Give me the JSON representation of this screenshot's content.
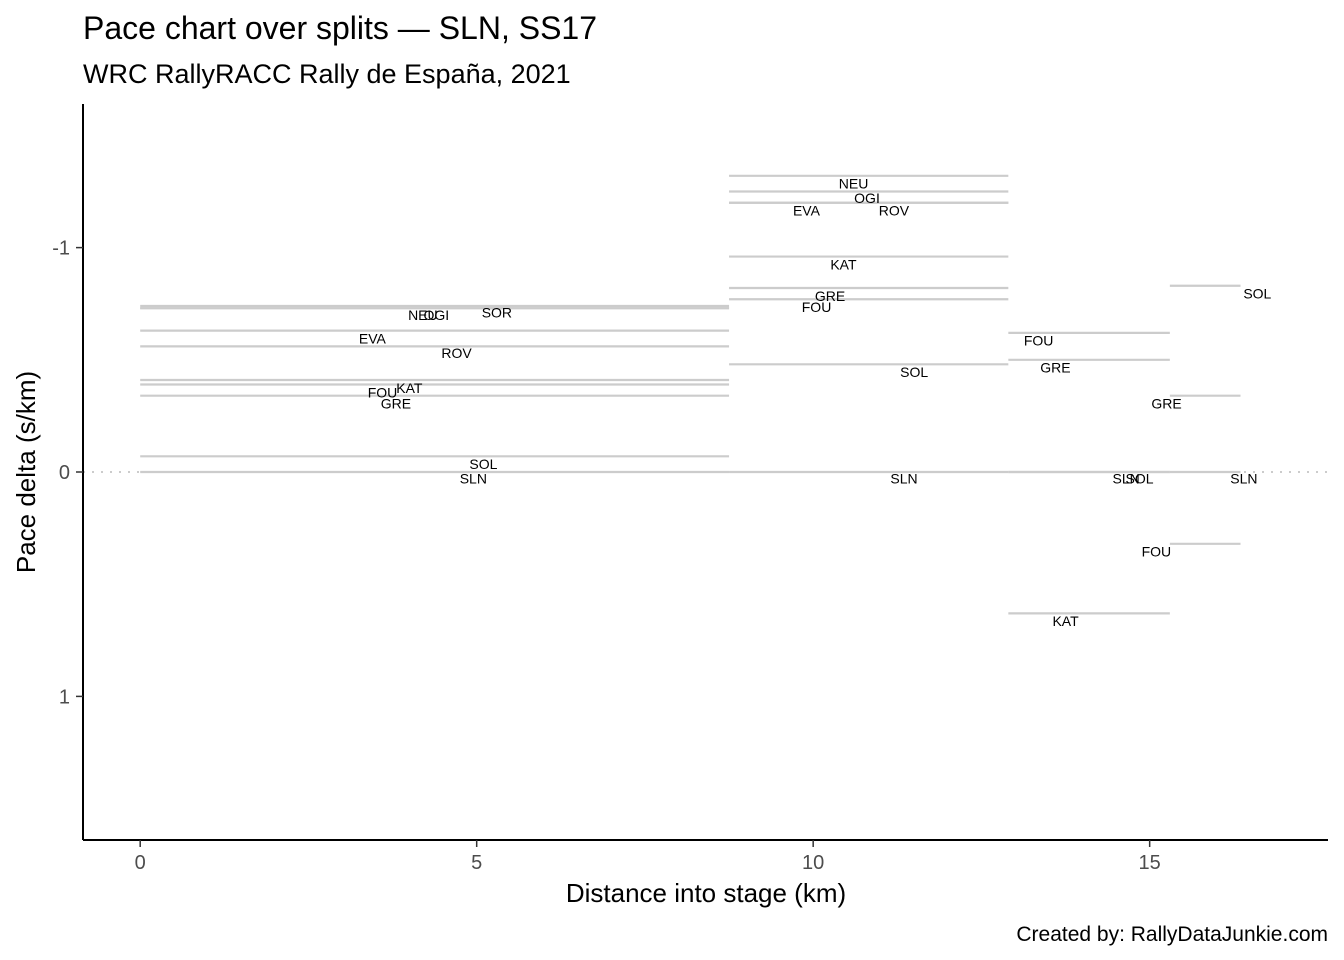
{
  "chart_data": {
    "type": "line",
    "title": "Pace chart over splits — SLN, SS17",
    "subtitle": "WRC RallyRACC Rally de España, 2021",
    "xlabel": "Distance into stage (km)",
    "ylabel": "Pace delta (s/km)",
    "caption": "Created by: RallyDataJunkie.com",
    "xlim": [
      -0.85,
      17.65
    ],
    "ylim": [
      -1.64,
      1.64
    ],
    "y_reversed": true,
    "x_ticks": [
      0,
      5,
      10,
      15
    ],
    "x_tick_labels": [
      "0",
      "5",
      "10",
      "15"
    ],
    "y_ticks": [
      -1,
      0,
      1
    ],
    "y_tick_labels": [
      "-1",
      "0",
      "1"
    ],
    "reference_line": {
      "y": 0,
      "style": "dotted"
    },
    "grid": false,
    "legend": "none",
    "colors": {
      "segments": "#cccccc",
      "reference": "#cccccc",
      "axis": "#000000"
    },
    "segments": [
      {
        "label": "NEU",
        "x_start": 0,
        "x_end": 8.75,
        "y": -0.73,
        "label_x": 4.2,
        "label_y": -0.7
      },
      {
        "label": "OGI",
        "x_start": 0,
        "x_end": 8.75,
        "y": -0.73,
        "label_x": 4.4,
        "label_y": -0.7
      },
      {
        "label": "SOR",
        "x_start": 0,
        "x_end": 8.75,
        "y": -0.74,
        "label_x": 5.3,
        "label_y": -0.71
      },
      {
        "label": "EVA",
        "x_start": 0,
        "x_end": 8.75,
        "y": -0.63,
        "label_x": 3.45,
        "label_y": -0.595
      },
      {
        "label": "ROV",
        "x_start": 0,
        "x_end": 8.75,
        "y": -0.56,
        "label_x": 4.7,
        "label_y": -0.53
      },
      {
        "label": "KAT",
        "x_start": 0,
        "x_end": 8.75,
        "y": -0.41,
        "label_x": 4.0,
        "label_y": -0.375
      },
      {
        "label": "FOU",
        "x_start": 0,
        "x_end": 8.75,
        "y": -0.39,
        "label_x": 3.6,
        "label_y": -0.355
      },
      {
        "label": "GRE",
        "x_start": 0,
        "x_end": 8.75,
        "y": -0.34,
        "label_x": 3.8,
        "label_y": -0.305
      },
      {
        "label": "SOL",
        "x_start": 0,
        "x_end": 8.75,
        "y": -0.07,
        "label_x": 5.1,
        "label_y": -0.035
      },
      {
        "label": "SLN",
        "x_start": 0,
        "x_end": 8.75,
        "y": 0,
        "label_x": 4.95,
        "label_y": 0.03
      },
      {
        "label": "NEU",
        "x_start": 8.75,
        "x_end": 12.9,
        "y": -1.32,
        "label_x": 10.6,
        "label_y": -1.285
      },
      {
        "label": "OGI",
        "x_start": 8.75,
        "x_end": 12.9,
        "y": -1.25,
        "label_x": 10.8,
        "label_y": -1.22
      },
      {
        "label": "EVA",
        "x_start": 8.75,
        "x_end": 12.9,
        "y": -1.2,
        "label_x": 9.9,
        "label_y": -1.165
      },
      {
        "label": "ROV",
        "x_start": 8.75,
        "x_end": 12.9,
        "y": -1.2,
        "label_x": 11.2,
        "label_y": -1.165
      },
      {
        "label": "KAT",
        "x_start": 8.75,
        "x_end": 12.9,
        "y": -0.96,
        "label_x": 10.45,
        "label_y": -0.925
      },
      {
        "label": "GRE",
        "x_start": 8.75,
        "x_end": 12.9,
        "y": -0.82,
        "label_x": 10.25,
        "label_y": -0.785
      },
      {
        "label": "FOU",
        "x_start": 8.75,
        "x_end": 12.9,
        "y": -0.77,
        "label_x": 10.05,
        "label_y": -0.735
      },
      {
        "label": "SOL",
        "x_start": 8.75,
        "x_end": 12.9,
        "y": -0.48,
        "label_x": 11.5,
        "label_y": -0.445
      },
      {
        "label": "SLN",
        "x_start": 8.75,
        "x_end": 12.9,
        "y": 0,
        "label_x": 11.35,
        "label_y": 0.03
      },
      {
        "label": "FOU",
        "x_start": 12.9,
        "x_end": 15.3,
        "y": -0.62,
        "label_x": 13.35,
        "label_y": -0.585
      },
      {
        "label": "GRE",
        "x_start": 12.9,
        "x_end": 15.3,
        "y": -0.5,
        "label_x": 13.6,
        "label_y": -0.465
      },
      {
        "label": "KAT",
        "x_start": 12.9,
        "x_end": 15.3,
        "y": 0.63,
        "label_x": 13.75,
        "label_y": 0.665
      },
      {
        "label": "SLN",
        "x_start": 12.9,
        "x_end": 15.3,
        "y": 0,
        "label_x": 14.65,
        "label_y": 0.03
      },
      {
        "label": "SOL",
        "x_start": 12.9,
        "x_end": 15.3,
        "y": 0,
        "label_x": 14.85,
        "label_y": 0.03
      },
      {
        "label": "SOL",
        "x_start": 15.3,
        "x_end": 16.35,
        "y": -0.83,
        "label_x": 16.6,
        "label_y": -0.795
      },
      {
        "label": "GRE",
        "x_start": 15.3,
        "x_end": 16.35,
        "y": -0.34,
        "label_x": 15.25,
        "label_y": -0.305
      },
      {
        "label": "FOU",
        "x_start": 15.3,
        "x_end": 16.35,
        "y": 0.32,
        "label_x": 15.1,
        "label_y": 0.355
      },
      {
        "label": "SLN",
        "x_start": 15.3,
        "x_end": 16.35,
        "y": 0,
        "label_x": 16.4,
        "label_y": 0.03
      }
    ]
  }
}
